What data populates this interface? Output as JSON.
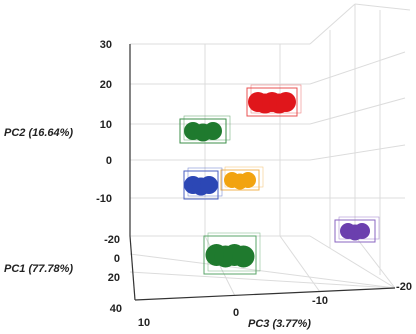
{
  "chart_data": {
    "type": "scatter",
    "projection": "3d",
    "axes": {
      "pc1": {
        "label": "PC1 (77.78%)",
        "ticks": [
          "-20",
          "0",
          "20",
          "40"
        ],
        "range": [
          -20,
          40
        ]
      },
      "pc2": {
        "label": "PC2 (16.64%)",
        "ticks": [
          "30",
          "20",
          "10",
          "0",
          "-10",
          "-20"
        ],
        "range": [
          -20,
          30
        ]
      },
      "pc3": {
        "label": "PC3 (3.77%)",
        "ticks": [
          "10",
          "0",
          "-10",
          "-20"
        ],
        "range": [
          -20,
          10
        ]
      }
    },
    "grid": true,
    "series": [
      {
        "color": "#e0161b",
        "box_color": "#e85050",
        "points": 5
      },
      {
        "color": "#1f7a2e",
        "box_color": "#3c8f4a",
        "points": 3
      },
      {
        "color": "#f2a30f",
        "box_color": "#f2b350",
        "points": 3
      },
      {
        "color": "#2c47b5",
        "box_color": "#4a5fc0",
        "points": 3
      },
      {
        "color": "#1f7a2e",
        "box_color": "#5aa568",
        "points": 4
      },
      {
        "color": "#6b3fae",
        "box_color": "#8a64c0",
        "points": 3
      }
    ]
  }
}
